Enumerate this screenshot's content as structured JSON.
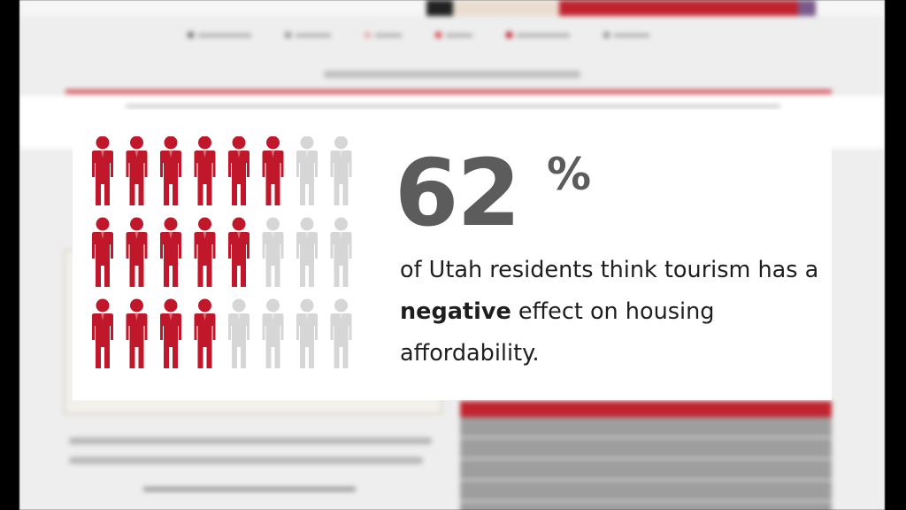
{
  "stat": {
    "value": "62",
    "unit": "%",
    "text_before": "of Utah residents think tourism has a ",
    "emphasis": "negative",
    "text_after": " effect on housing affordability.",
    "fraction_shaded": 0.62
  },
  "icon_grid": {
    "rows": 3,
    "cols": 8,
    "filled_per_row": [
      6,
      5,
      4
    ],
    "filled_color": "#c0182a",
    "empty_color": "#d6d6d6"
  },
  "background": {
    "accent_color": "#c0242f",
    "rule_color": "#d45862"
  }
}
